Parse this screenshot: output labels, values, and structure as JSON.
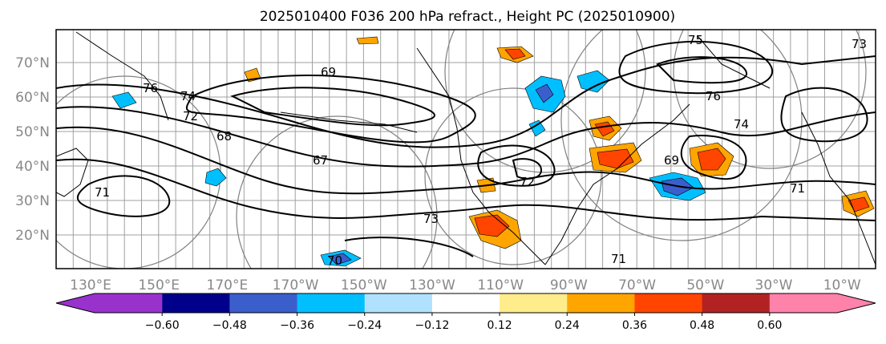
{
  "title": "2025010400 F036 200 hPa refract., Height PC (2025010900)",
  "lat_labels": [
    "70°N",
    "60°N",
    "50°N",
    "40°N",
    "30°N",
    "20°N"
  ],
  "lon_labels": [
    "130°E",
    "150°E",
    "170°E",
    "170°W",
    "150°W",
    "130°W",
    "110°W",
    "90°W",
    "70°W",
    "50°W",
    "30°W",
    "10°W"
  ],
  "contour_labels": [
    "76",
    "74",
    "72",
    "68",
    "67",
    "69",
    "73",
    "71",
    "75",
    "74",
    "71",
    "76",
    "69",
    "70",
    "71",
    "72",
    "73"
  ],
  "colorbar": {
    "ticks": [
      "−0.60",
      "−0.48",
      "−0.36",
      "−0.24",
      "−0.12",
      "0.12",
      "0.24",
      "0.36",
      "0.48",
      "0.60"
    ],
    "colors": [
      "#9932cc",
      "#00008b",
      "#3a5fcd",
      "#00bfff",
      "#b0e2ff",
      "#ffffff",
      "#ffec8b",
      "#ffa500",
      "#ff4500",
      "#b22222",
      "#ff82ab",
      "#ff82ab"
    ],
    "extend": "both"
  },
  "colors": {
    "contour": "#000000",
    "grid": "#a0a0a0",
    "tick_text": "#888888",
    "range_ring": "#808080"
  }
}
